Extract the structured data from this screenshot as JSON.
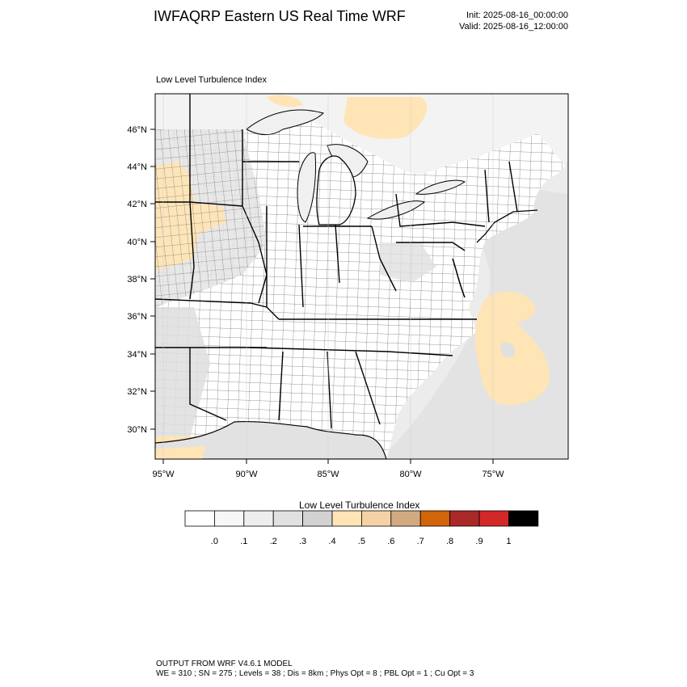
{
  "header": {
    "title": "IWFAQRP Eastern US Real Time WRF",
    "init": "Init: 2025-08-16_00:00:00",
    "valid": "Valid: 2025-08-16_12:00:00"
  },
  "map": {
    "subtitle": "Low Level Turbulence Index",
    "lat_labels": [
      "46°N",
      "44°N",
      "42°N",
      "40°N",
      "38°N",
      "36°N",
      "34°N",
      "32°N",
      "30°N"
    ],
    "lon_labels": [
      "95°W",
      "90°W",
      "85°W",
      "80°W",
      "75°W"
    ]
  },
  "legend": {
    "title": "Low Level Turbulence Index",
    "labels": [
      ".0",
      ".1",
      ".2",
      ".3",
      ".4",
      ".5",
      ".6",
      ".7",
      ".8",
      ".9",
      "1"
    ],
    "colors": [
      "#ffffff",
      "#f7f7f7",
      "#eeeeee",
      "#e1e1e1",
      "#d2d2d2",
      "#ffe4b5",
      "#f5d2a5",
      "#d2aa82",
      "#d2640a",
      "#aa2828",
      "#d22828",
      "#000000"
    ]
  },
  "footer": {
    "line1": "OUTPUT FROM WRF V4.6.1 MODEL",
    "line2": "WE = 310 ; SN = 275 ; Levels = 38 ; Dis = 8km ; Phys Opt = 8 ; PBL Opt = 1 ; Cu Opt = 3"
  }
}
